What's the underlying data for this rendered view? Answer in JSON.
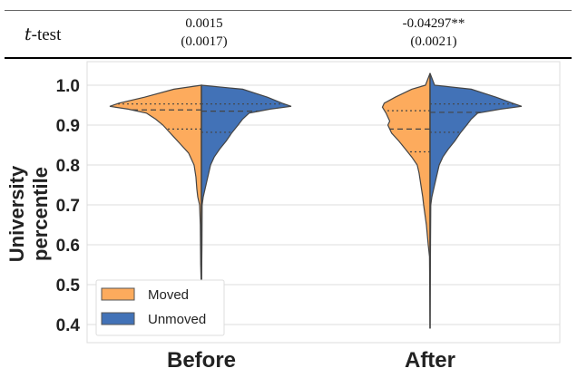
{
  "table": {
    "row_label_italic": "t",
    "row_label_rest": "-test",
    "cells": [
      {
        "value": "0.0015",
        "se": "(0.0017)"
      },
      {
        "value": "-0.04297**",
        "se": "(0.0021)"
      }
    ]
  },
  "chart_data": {
    "type": "violin",
    "ylabel": "University percentile",
    "ylim": [
      0.38,
      1.04
    ],
    "yticks": [
      "0.4",
      "0.5",
      "0.6",
      "0.7",
      "0.8",
      "0.9",
      "1.0"
    ],
    "categories": [
      "Before",
      "After"
    ],
    "legend": {
      "placement": "lower-left",
      "entries": [
        {
          "label": "Moved",
          "color": "#fdab5d"
        },
        {
          "label": "Unmoved",
          "color": "#4272b7"
        }
      ]
    },
    "grid": true,
    "groups": [
      {
        "category": "Before",
        "range": [
          0.48,
          1.0
        ],
        "moved": {
          "quartiles": [
            0.89,
            0.938,
            0.953
          ],
          "density": [
            [
              1.0,
              0
            ],
            [
              0.99,
              0.3
            ],
            [
              0.97,
              0.62
            ],
            [
              0.955,
              0.9
            ],
            [
              0.947,
              1.0
            ],
            [
              0.94,
              0.8
            ],
            [
              0.93,
              0.6
            ],
            [
              0.915,
              0.5
            ],
            [
              0.9,
              0.42
            ],
            [
              0.885,
              0.36
            ],
            [
              0.87,
              0.3
            ],
            [
              0.85,
              0.22
            ],
            [
              0.83,
              0.14
            ],
            [
              0.81,
              0.1
            ],
            [
              0.8,
              0.08
            ],
            [
              0.77,
              0.06
            ],
            [
              0.74,
              0.05
            ],
            [
              0.72,
              0.04
            ],
            [
              0.7,
              0.02
            ],
            [
              0.65,
              0.012
            ],
            [
              0.55,
              0.008
            ],
            [
              0.48,
              0
            ]
          ]
        },
        "unmoved": {
          "quartiles": [
            0.882,
            0.935,
            0.953
          ],
          "density": [
            [
              1.0,
              0
            ],
            [
              0.99,
              0.45
            ],
            [
              0.97,
              0.72
            ],
            [
              0.955,
              0.88
            ],
            [
              0.947,
              0.98
            ],
            [
              0.94,
              0.75
            ],
            [
              0.93,
              0.52
            ],
            [
              0.915,
              0.45
            ],
            [
              0.9,
              0.4
            ],
            [
              0.88,
              0.33
            ],
            [
              0.86,
              0.27
            ],
            [
              0.84,
              0.2
            ],
            [
              0.82,
              0.14
            ],
            [
              0.8,
              0.1
            ],
            [
              0.78,
              0.08
            ],
            [
              0.75,
              0.05
            ],
            [
              0.72,
              0.02
            ],
            [
              0.7,
              0.008
            ],
            [
              0.6,
              0.006
            ],
            [
              0.48,
              0
            ]
          ]
        }
      },
      {
        "category": "After",
        "range": [
          0.39,
          1.03
        ],
        "moved": {
          "quartiles": [
            0.833,
            0.89,
            0.936
          ],
          "density": [
            [
              1.03,
              0
            ],
            [
              1.0,
              0.05
            ],
            [
              0.99,
              0.2
            ],
            [
              0.97,
              0.38
            ],
            [
              0.955,
              0.5
            ],
            [
              0.945,
              0.52
            ],
            [
              0.93,
              0.48
            ],
            [
              0.91,
              0.44
            ],
            [
              0.9,
              0.46
            ],
            [
              0.88,
              0.42
            ],
            [
              0.86,
              0.34
            ],
            [
              0.84,
              0.27
            ],
            [
              0.82,
              0.2
            ],
            [
              0.8,
              0.14
            ],
            [
              0.78,
              0.12
            ],
            [
              0.75,
              0.1
            ],
            [
              0.72,
              0.08
            ],
            [
              0.7,
              0.07
            ],
            [
              0.65,
              0.04
            ],
            [
              0.6,
              0.02
            ],
            [
              0.57,
              0.006
            ],
            [
              0.39,
              0
            ]
          ]
        },
        "unmoved": {
          "quartiles": [
            0.882,
            0.932,
            0.953
          ],
          "density": [
            [
              1.03,
              0
            ],
            [
              1.0,
              0.05
            ],
            [
              0.99,
              0.45
            ],
            [
              0.97,
              0.72
            ],
            [
              0.955,
              0.9
            ],
            [
              0.947,
              1.0
            ],
            [
              0.94,
              0.77
            ],
            [
              0.93,
              0.52
            ],
            [
              0.915,
              0.45
            ],
            [
              0.9,
              0.4
            ],
            [
              0.88,
              0.33
            ],
            [
              0.86,
              0.27
            ],
            [
              0.84,
              0.2
            ],
            [
              0.82,
              0.14
            ],
            [
              0.8,
              0.1
            ],
            [
              0.78,
              0.08
            ],
            [
              0.75,
              0.05
            ],
            [
              0.72,
              0.02
            ],
            [
              0.7,
              0.008
            ],
            [
              0.6,
              0.005
            ],
            [
              0.39,
              0
            ]
          ]
        }
      }
    ]
  }
}
